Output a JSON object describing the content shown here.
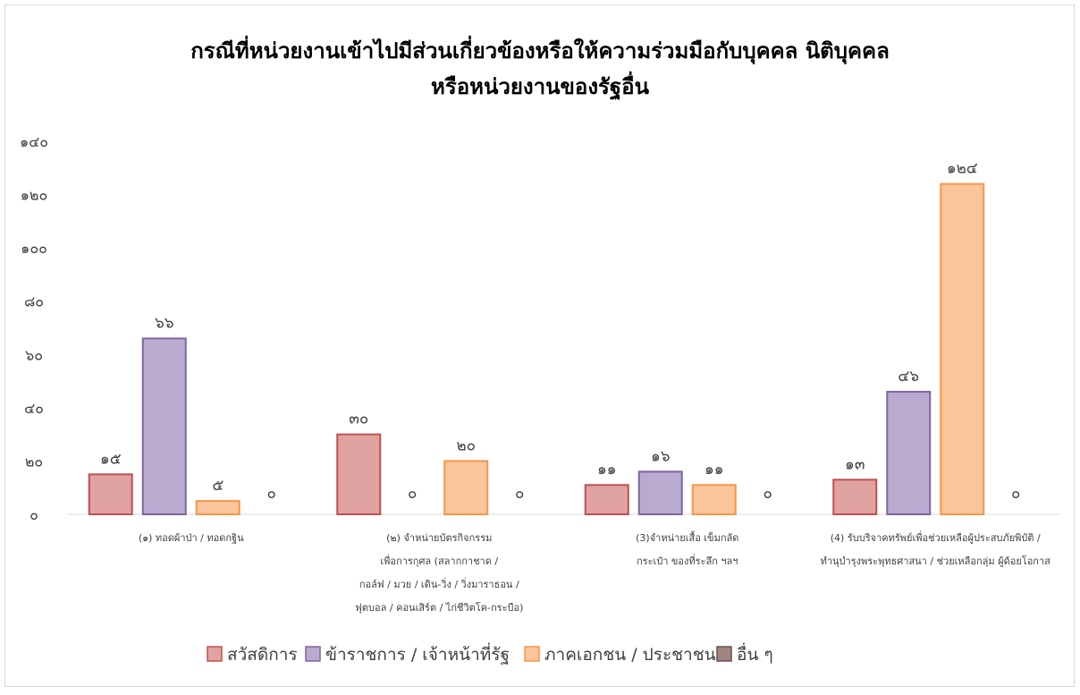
{
  "chart_data": {
    "type": "bar",
    "title": [
      "กรณีที่หน่วยงานเข้าไปมีส่วนเกี่ยวข้องหรือให้ความร่วมมือกับบุคคล นิติบุคคล",
      "หรือหน่วยงานของรัฐอื่น"
    ],
    "categories": [
      [
        "(๑) ทอดผ้าป่า /  ทอดกฐิน"
      ],
      [
        "(๒) จำหน่ายบัตรกิจกรรม",
        "เพื่อการกุศล (สลากกาชาด /",
        "กอล์ฟ / มวย / เดิน-วิ่ง / วิ่งมาราธอน /",
        "ฟุตบอล / คอนเสิร์ต / ไก่ชีวิตโค-กระบือ)"
      ],
      [
        "(3)จำหน่ายเสื้อ เข็มกลัด",
        "กระเป๋า ของที่ระลึก ฯลฯ"
      ],
      [
        "(4) รับบริจาคทรัพย์เพื่อช่วยเหลือผู้ประสบภัยพิบัติ /",
        "ทำนุบำรุงพระพุทธศาสนา / ช่วยเหลือกลุ่ม ผู้ด้อยโอกาส"
      ]
    ],
    "series": [
      {
        "name": "สวัสดิการ",
        "color": "#e0a3a2",
        "border": "#c0504d",
        "values": [
          15,
          30,
          11,
          13
        ],
        "value_labels": [
          "๑๕",
          "๓๐",
          "๑๑",
          "๑๓"
        ]
      },
      {
        "name": "ข้าราชการ / เจ้าหน้าที่รัฐ",
        "color": "#b9abcf",
        "border": "#8064a2",
        "values": [
          66,
          0,
          16,
          46
        ],
        "value_labels": [
          "๖๖",
          "๐",
          "๑๖",
          "๔๖"
        ]
      },
      {
        "name": "ภาคเอกชน / ประชาชน",
        "color": "#fbc59c",
        "border": "#f79646",
        "values": [
          5,
          20,
          11,
          124
        ],
        "value_labels": [
          "๕",
          "๒๐",
          "๑๑",
          "๑๒๔"
        ]
      },
      {
        "name": "อื่น ๆ",
        "color": "#a08482",
        "border": "#6f4f4d",
        "values": [
          0,
          0,
          0,
          0
        ],
        "value_labels": [
          "๐",
          "๐",
          "๐",
          "๐"
        ]
      }
    ],
    "ylim": [
      0,
      140
    ],
    "yticks": [
      {
        "value": 0,
        "label": "๐"
      },
      {
        "value": 20,
        "label": "๒๐"
      },
      {
        "value": 40,
        "label": "๔๐"
      },
      {
        "value": 60,
        "label": "๖๐"
      },
      {
        "value": 80,
        "label": "๘๐"
      },
      {
        "value": 100,
        "label": "๑๐๐"
      },
      {
        "value": 120,
        "label": "๑๒๐"
      },
      {
        "value": 140,
        "label": "๑๔๐"
      }
    ],
    "legend": "bottom"
  }
}
